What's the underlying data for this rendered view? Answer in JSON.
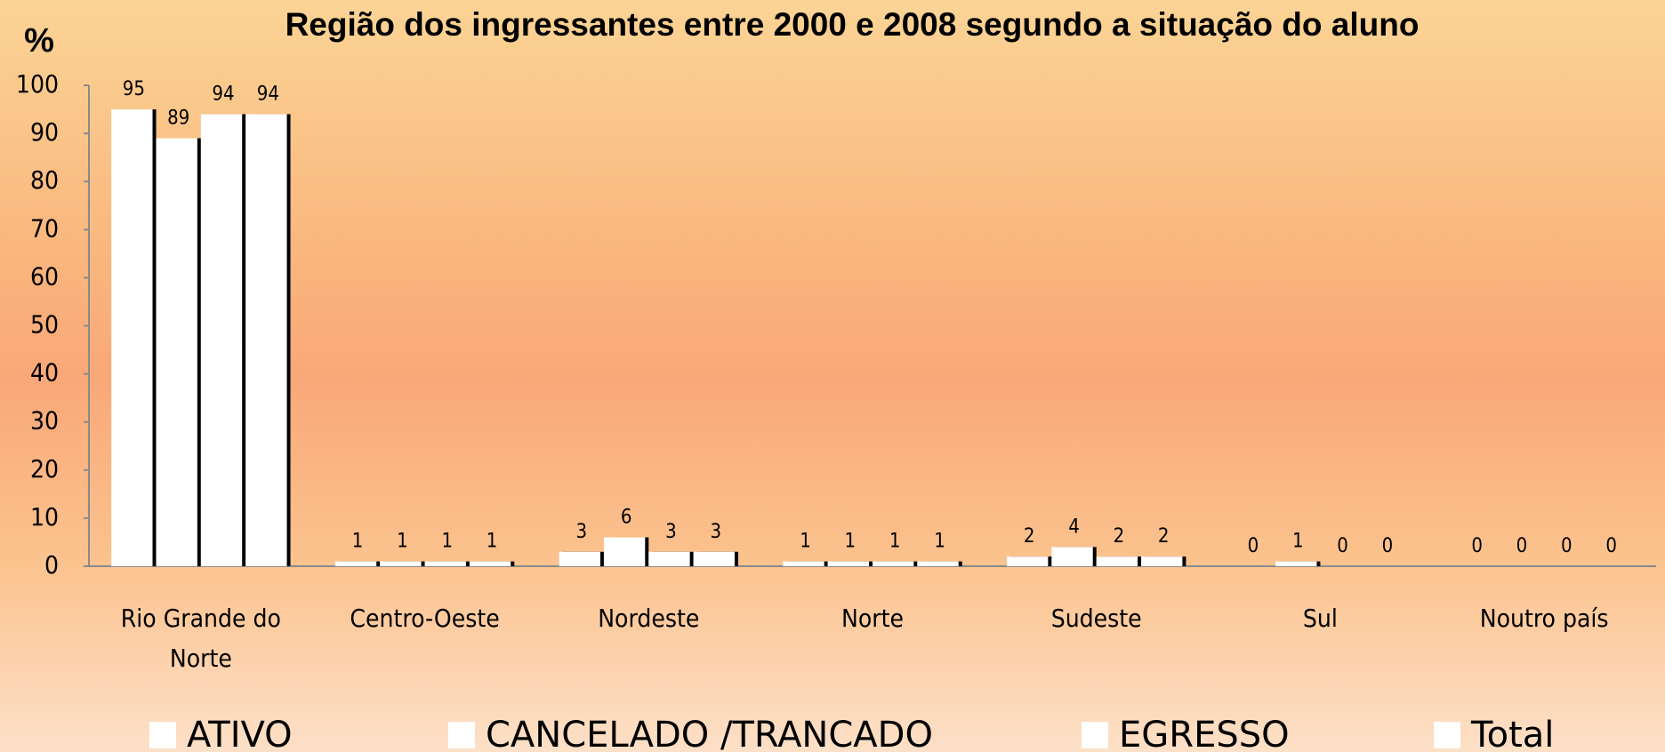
{
  "chart_data": {
    "type": "bar",
    "title": "Região dos ingressantes entre 2000 e 2008 segundo a situação do aluno",
    "y_label": "%",
    "categories": [
      "Rio Grande do Norte",
      "Centro-Oeste",
      "Nordeste",
      "Norte",
      "Sudeste",
      "Sul",
      "Noutro país"
    ],
    "series": [
      {
        "name": "ATIVO",
        "color": "#ffffff",
        "values": [
          95,
          1,
          3,
          1,
          2,
          0,
          0
        ]
      },
      {
        "name": "CANCELADO /TRANCADO",
        "color": "#ffffff",
        "values": [
          89,
          1,
          6,
          1,
          4,
          1,
          0
        ]
      },
      {
        "name": "EGRESSO",
        "color": "#ffffff",
        "values": [
          94,
          1,
          3,
          1,
          2,
          0,
          0
        ]
      },
      {
        "name": "Total",
        "color": "#ffffff",
        "values": [
          94,
          1,
          3,
          1,
          2,
          0,
          0
        ]
      }
    ],
    "ylim": [
      0,
      100
    ],
    "yticks": [
      0,
      10,
      20,
      30,
      40,
      50,
      60,
      70,
      80,
      90,
      100
    ],
    "legend": "bottom"
  }
}
